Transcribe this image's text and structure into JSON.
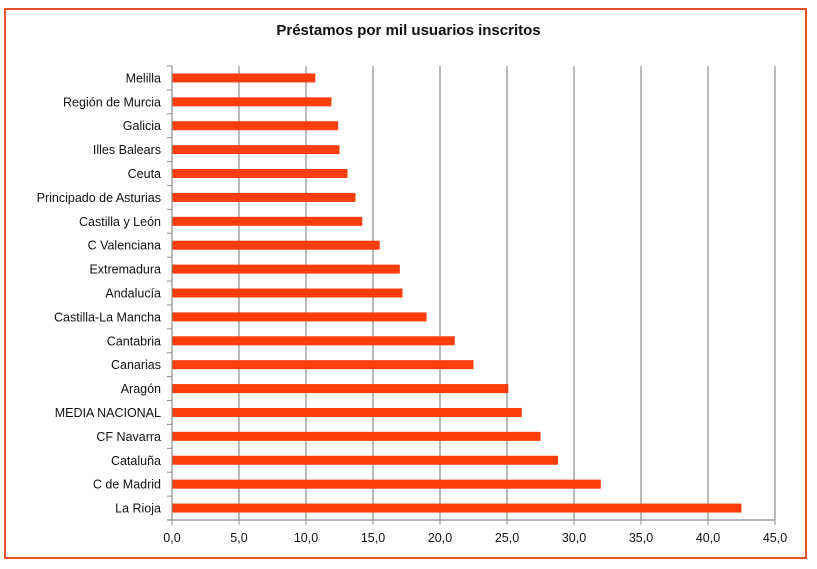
{
  "chart_data": {
    "type": "bar",
    "orientation": "horizontal",
    "title": "Préstamos por mil usuarios inscritos",
    "xlabel": "",
    "ylabel": "",
    "xlim": [
      0,
      45
    ],
    "x_ticks": [
      "0,0",
      "5,0",
      "10,0",
      "15,0",
      "20,0",
      "25,0",
      "30,0",
      "35,0",
      "40,0",
      "45,0"
    ],
    "grid": "vertical",
    "categories": [
      "Melilla",
      "Región de Murcia",
      "Galicia",
      "Illes Balears",
      "Ceuta",
      "Principado de Asturias",
      "Castilla y León",
      "C Valenciana",
      "Extremadura",
      "Andalucía",
      "Castilla-La Mancha",
      "Cantabria",
      "Canarias",
      "Aragón",
      "MEDIA NACIONAL",
      "CF Navarra",
      "Cataluña",
      "C de Madrid",
      "La Rioja"
    ],
    "values": [
      10.7,
      11.9,
      12.4,
      12.5,
      13.1,
      13.7,
      14.2,
      15.5,
      17.0,
      17.2,
      19.0,
      21.1,
      22.5,
      25.1,
      26.1,
      27.5,
      28.8,
      32.0,
      42.5
    ],
    "bar_color": "#ff3d0d",
    "frame_color": "#e8502a"
  }
}
